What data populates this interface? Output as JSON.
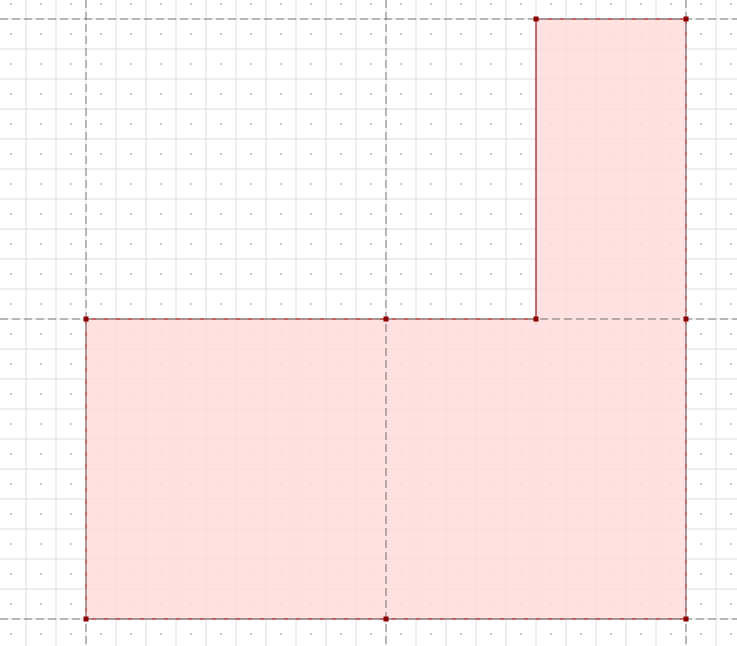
{
  "colors": {
    "background": "#ffffff",
    "minor_grid": "#dcdcdc",
    "grid_dots": "#333333",
    "major_grid": "#6e6e6e",
    "shape_fill": "#ffdcdc",
    "shape_stroke": "#a01414",
    "vertex": "#8b0000"
  },
  "diagram": {
    "shape": "L-shaped polygon",
    "grid_units": {
      "minor_per_major": 10
    },
    "vertices_in_major_units": [
      [
        0,
        1
      ],
      [
        1,
        1
      ],
      [
        1.5,
        1
      ],
      [
        1.5,
        0
      ],
      [
        2,
        0
      ],
      [
        2,
        1
      ],
      [
        2,
        2
      ],
      [
        1,
        2
      ],
      [
        0,
        2
      ]
    ]
  }
}
